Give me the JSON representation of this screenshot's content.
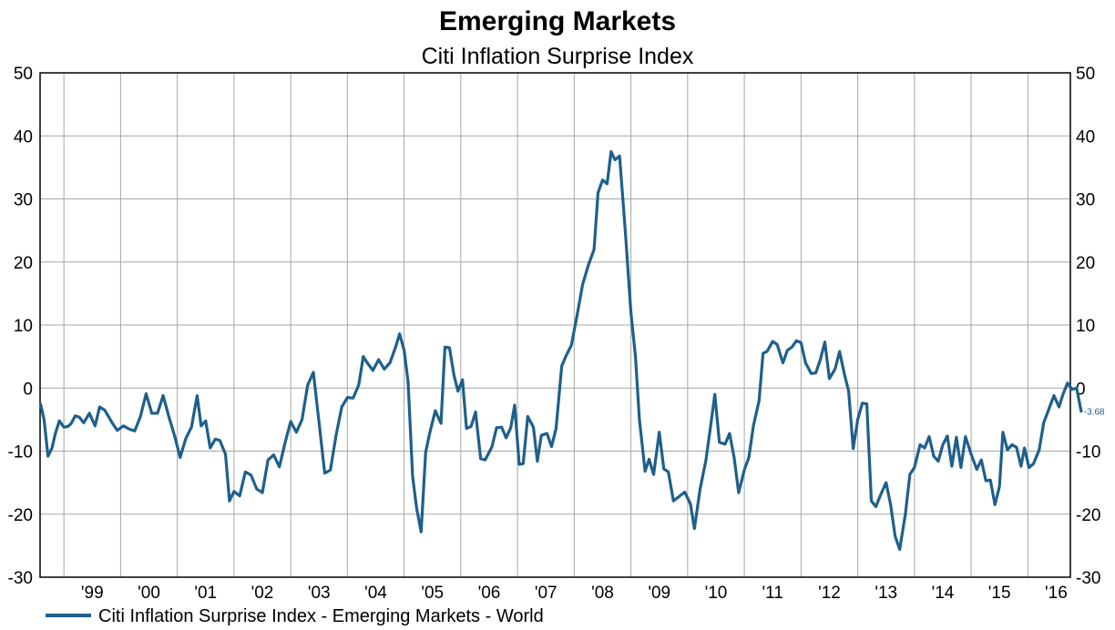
{
  "chart_data": {
    "type": "line",
    "title": "Emerging Markets",
    "subtitle": "Citi Inflation Surprise Index",
    "ylim": [
      -30,
      50
    ],
    "y_ticks": [
      50,
      40,
      30,
      20,
      10,
      0,
      -10,
      -20,
      -30
    ],
    "xlim": [
      1998.58,
      2016.75
    ],
    "x_tick_labels": [
      {
        "x": 1999.5,
        "label": "'99"
      },
      {
        "x": 2000.5,
        "label": "'00"
      },
      {
        "x": 2001.5,
        "label": "'01"
      },
      {
        "x": 2002.5,
        "label": "'02"
      },
      {
        "x": 2003.5,
        "label": "'03"
      },
      {
        "x": 2004.5,
        "label": "'04"
      },
      {
        "x": 2005.5,
        "label": "'05"
      },
      {
        "x": 2006.5,
        "label": "'06"
      },
      {
        "x": 2007.5,
        "label": "'07"
      },
      {
        "x": 2008.5,
        "label": "'08"
      },
      {
        "x": 2009.5,
        "label": "'09"
      },
      {
        "x": 2010.5,
        "label": "'10"
      },
      {
        "x": 2011.5,
        "label": "'11"
      },
      {
        "x": 2012.5,
        "label": "'12"
      },
      {
        "x": 2013.5,
        "label": "'13"
      },
      {
        "x": 2014.5,
        "label": "'14"
      },
      {
        "x": 2015.5,
        "label": "'15"
      },
      {
        "x": 2016.5,
        "label": "'16"
      }
    ],
    "grid": true,
    "legend_position": "bottom-left",
    "series": [
      {
        "name": "Citi Inflation Surprise Index - Emerging Markets - World",
        "color": "#1f5f8b",
        "last_value_label": "-3.68",
        "points": [
          [
            1998.59,
            -2.6
          ],
          [
            1998.65,
            -5
          ],
          [
            1998.72,
            -10.8
          ],
          [
            1998.79,
            -9.5
          ],
          [
            1998.85,
            -7.2
          ],
          [
            1998.92,
            -5.2
          ],
          [
            1999.0,
            -6.2
          ],
          [
            1999.07,
            -6.1
          ],
          [
            1999.13,
            -5.6
          ],
          [
            1999.2,
            -4.4
          ],
          [
            1999.27,
            -4.6
          ],
          [
            1999.35,
            -5.5
          ],
          [
            1999.45,
            -4.0
          ],
          [
            1999.55,
            -6.0
          ],
          [
            1999.63,
            -3.0
          ],
          [
            1999.72,
            -3.5
          ],
          [
            1999.85,
            -5.5
          ],
          [
            1999.94,
            -6.7
          ],
          [
            2000.05,
            -6.0
          ],
          [
            2000.15,
            -6.5
          ],
          [
            2000.25,
            -6.8
          ],
          [
            2000.35,
            -4.5
          ],
          [
            2000.45,
            -0.9
          ],
          [
            2000.55,
            -4.0
          ],
          [
            2000.65,
            -4.0
          ],
          [
            2000.75,
            -1.2
          ],
          [
            2000.85,
            -4.5
          ],
          [
            2000.95,
            -7.5
          ],
          [
            2001.05,
            -11
          ],
          [
            2001.15,
            -8.0
          ],
          [
            2001.25,
            -6.2
          ],
          [
            2001.35,
            -1.2
          ],
          [
            2001.42,
            -6.0
          ],
          [
            2001.5,
            -5.2
          ],
          [
            2001.58,
            -9.5
          ],
          [
            2001.67,
            -8.1
          ],
          [
            2001.75,
            -8.3
          ],
          [
            2001.85,
            -10.5
          ],
          [
            2001.92,
            -17.9
          ],
          [
            2002.0,
            -16.4
          ],
          [
            2002.1,
            -17.1
          ],
          [
            2002.2,
            -13.3
          ],
          [
            2002.3,
            -13.8
          ],
          [
            2002.4,
            -16.0
          ],
          [
            2002.5,
            -16.6
          ],
          [
            2002.6,
            -11.4
          ],
          [
            2002.7,
            -10.6
          ],
          [
            2002.8,
            -12.5
          ],
          [
            2002.9,
            -8.7
          ],
          [
            2003.0,
            -5.3
          ],
          [
            2003.1,
            -7.0
          ],
          [
            2003.2,
            -5.0
          ],
          [
            2003.3,
            0.5
          ],
          [
            2003.4,
            2.5
          ],
          [
            2003.5,
            -5.5
          ],
          [
            2003.6,
            -13.5
          ],
          [
            2003.7,
            -13.0
          ],
          [
            2003.8,
            -7.5
          ],
          [
            2003.9,
            -3.0
          ],
          [
            2004.0,
            -1.5
          ],
          [
            2004.1,
            -1.6
          ],
          [
            2004.2,
            0.5
          ],
          [
            2004.28,
            5.0
          ],
          [
            2004.35,
            4.0
          ],
          [
            2004.45,
            2.8
          ],
          [
            2004.55,
            4.5
          ],
          [
            2004.65,
            3.0
          ],
          [
            2004.75,
            4.0
          ],
          [
            2004.85,
            6.5
          ],
          [
            2004.92,
            8.6
          ],
          [
            2005.0,
            6.0
          ],
          [
            2005.07,
            1.0
          ],
          [
            2005.15,
            -14.0
          ],
          [
            2005.22,
            -19.0
          ],
          [
            2005.3,
            -22.8
          ],
          [
            2005.38,
            -10.2
          ],
          [
            2005.45,
            -7.2
          ],
          [
            2005.55,
            -3.6
          ],
          [
            2005.65,
            -5.6
          ],
          [
            2005.72,
            6.5
          ],
          [
            2005.8,
            6.4
          ],
          [
            2005.88,
            2.0
          ],
          [
            2005.95,
            -0.5
          ],
          [
            2006.03,
            1.3
          ],
          [
            2006.1,
            -6.4
          ],
          [
            2006.18,
            -6.1
          ],
          [
            2006.26,
            -3.8
          ],
          [
            2006.35,
            -11.2
          ],
          [
            2006.43,
            -11.4
          ],
          [
            2006.55,
            -9.3
          ],
          [
            2006.63,
            -6.3
          ],
          [
            2006.72,
            -6.2
          ],
          [
            2006.8,
            -7.9
          ],
          [
            2006.88,
            -6.3
          ],
          [
            2006.95,
            -2.7
          ],
          [
            2007.03,
            -12.1
          ],
          [
            2007.1,
            -12.0
          ],
          [
            2007.18,
            -4.5
          ],
          [
            2007.28,
            -6.2
          ],
          [
            2007.35,
            -11.6
          ],
          [
            2007.42,
            -7.5
          ],
          [
            2007.52,
            -7.2
          ],
          [
            2007.6,
            -9.3
          ],
          [
            2007.68,
            -6.4
          ],
          [
            2007.78,
            3.5
          ],
          [
            2007.85,
            5.0
          ],
          [
            2007.95,
            6.8
          ],
          [
            2008.05,
            11.5
          ],
          [
            2008.15,
            16.5
          ],
          [
            2008.25,
            19.5
          ],
          [
            2008.35,
            22.0
          ],
          [
            2008.42,
            31.0
          ],
          [
            2008.5,
            33.0
          ],
          [
            2008.58,
            32.4
          ],
          [
            2008.65,
            37.5
          ],
          [
            2008.72,
            36.2
          ],
          [
            2008.8,
            36.8
          ],
          [
            2008.9,
            25.0
          ],
          [
            2009.0,
            12.0
          ],
          [
            2009.08,
            5.0
          ],
          [
            2009.15,
            -5.0
          ],
          [
            2009.25,
            -13.2
          ],
          [
            2009.32,
            -11.3
          ],
          [
            2009.4,
            -13.7
          ],
          [
            2009.5,
            -7.0
          ],
          [
            2009.58,
            -12.8
          ],
          [
            2009.66,
            -13.3
          ],
          [
            2009.75,
            -17.9
          ],
          [
            2009.85,
            -17.2
          ],
          [
            2009.95,
            -16.5
          ],
          [
            2010.05,
            -18.4
          ],
          [
            2010.12,
            -22.3
          ],
          [
            2010.22,
            -16.0
          ],
          [
            2010.32,
            -11.6
          ],
          [
            2010.4,
            -6.4
          ],
          [
            2010.48,
            -1.0
          ],
          [
            2010.56,
            -8.6
          ],
          [
            2010.66,
            -8.9
          ],
          [
            2010.74,
            -7.2
          ],
          [
            2010.82,
            -11.0
          ],
          [
            2010.9,
            -16.6
          ],
          [
            2011.0,
            -13.0
          ],
          [
            2011.08,
            -11.0
          ],
          [
            2011.16,
            -6.0
          ],
          [
            2011.26,
            -2.0
          ],
          [
            2011.33,
            5.5
          ],
          [
            2011.4,
            5.8
          ],
          [
            2011.5,
            7.4
          ],
          [
            2011.58,
            6.9
          ],
          [
            2011.68,
            4.0
          ],
          [
            2011.76,
            6.0
          ],
          [
            2011.84,
            6.5
          ],
          [
            2011.92,
            7.5
          ],
          [
            2012.0,
            7.2
          ],
          [
            2012.08,
            4.0
          ],
          [
            2012.18,
            2.3
          ],
          [
            2012.26,
            2.4
          ],
          [
            2012.34,
            4.5
          ],
          [
            2012.42,
            7.3
          ],
          [
            2012.5,
            1.5
          ],
          [
            2012.6,
            3.0
          ],
          [
            2012.68,
            5.8
          ],
          [
            2012.76,
            2.4
          ],
          [
            2012.84,
            -0.5
          ],
          [
            2012.92,
            -9.6
          ],
          [
            2013.0,
            -5.0
          ],
          [
            2013.08,
            -2.4
          ],
          [
            2013.16,
            -2.5
          ],
          [
            2013.24,
            -17.9
          ],
          [
            2013.32,
            -18.8
          ],
          [
            2013.4,
            -17.0
          ],
          [
            2013.5,
            -15.0
          ],
          [
            2013.58,
            -18.5
          ],
          [
            2013.66,
            -23.5
          ],
          [
            2013.74,
            -25.6
          ],
          [
            2013.84,
            -20.0
          ],
          [
            2013.92,
            -13.7
          ],
          [
            2014.0,
            -12.6
          ],
          [
            2014.1,
            -9.0
          ],
          [
            2014.18,
            -9.5
          ],
          [
            2014.26,
            -7.7
          ],
          [
            2014.34,
            -10.8
          ],
          [
            2014.42,
            -11.6
          ],
          [
            2014.5,
            -9.0
          ],
          [
            2014.58,
            -7.6
          ],
          [
            2014.66,
            -12.4
          ],
          [
            2014.74,
            -7.8
          ],
          [
            2014.82,
            -12.6
          ],
          [
            2014.9,
            -7.7
          ],
          [
            2015.0,
            -10.5
          ],
          [
            2015.1,
            -12.9
          ],
          [
            2015.18,
            -11.4
          ],
          [
            2015.26,
            -14.7
          ],
          [
            2015.34,
            -14.6
          ],
          [
            2015.42,
            -18.5
          ],
          [
            2015.5,
            -15.6
          ],
          [
            2015.56,
            -7.0
          ],
          [
            2015.64,
            -9.8
          ],
          [
            2015.72,
            -9.0
          ],
          [
            2015.8,
            -9.4
          ],
          [
            2015.88,
            -12.4
          ],
          [
            2015.94,
            -9.5
          ],
          [
            2016.02,
            -12.6
          ],
          [
            2016.1,
            -12.0
          ],
          [
            2016.2,
            -9.8
          ],
          [
            2016.28,
            -5.5
          ],
          [
            2016.36,
            -3.6
          ],
          [
            2016.46,
            -1.2
          ],
          [
            2016.55,
            -3.0
          ],
          [
            2016.62,
            -1.0
          ],
          [
            2016.7,
            0.8
          ],
          [
            2016.78,
            -0.2
          ],
          [
            2016.86,
            0.0
          ],
          [
            2016.94,
            -3.68
          ]
        ]
      }
    ]
  }
}
